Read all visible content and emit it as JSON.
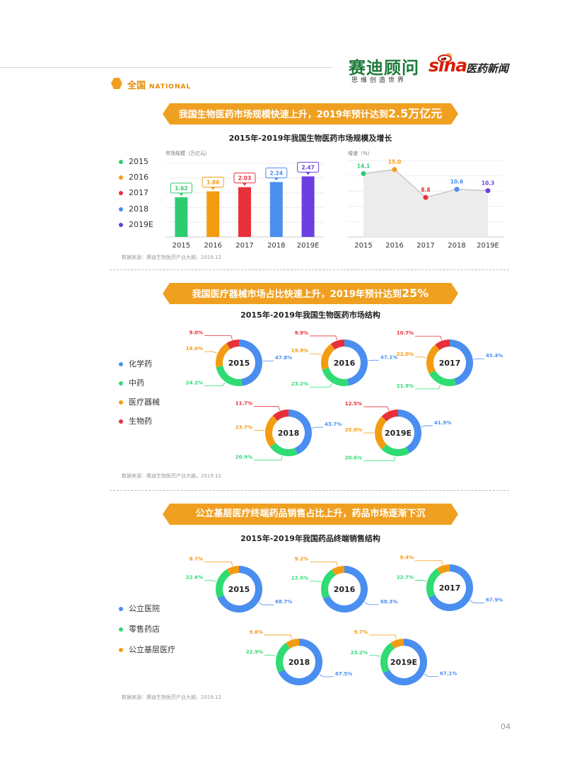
{
  "header": {
    "brand_name": "赛迪顾问",
    "brand_tagline": "思维创造世界",
    "partner_logo_text": "sina",
    "partner_name": "医药新闻",
    "section_cn": "全国",
    "section_en": "NATIONAL"
  },
  "colors": {
    "orange": "#F0A020",
    "c2015": "#2ECC71",
    "c2016": "#F39C12",
    "c2017": "#E8303A",
    "c2018": "#4A8EF0",
    "c2019": "#6B3FE0",
    "blue": "#4A8EF0",
    "green": "#2EDC72",
    "red": "#E8303A"
  },
  "sections": [
    {
      "banner_prefix": "我国生物医药市场规模快速上升，2019年预计达到",
      "banner_highlight": "2.5万亿元",
      "chart_title": "2015年-2019年我国生物医药市场规模及增长",
      "legend": [
        "2015",
        "2016",
        "2017",
        "2018",
        "2019E"
      ],
      "source": "数据来源：赛迪生物医药产业大脑，2019.12"
    },
    {
      "banner_prefix": "我国医疗器械市场占比快速上升，2019年预计达到",
      "banner_highlight": "25%",
      "chart_title": "2015年-2019年我国生物医药市场结构",
      "legend": [
        "化学药",
        "中药",
        "医疗器械",
        "生物药"
      ],
      "source": "数据来源：赛迪生物医药产业大脑，2019.12"
    },
    {
      "banner_prefix": "公立基层医疗终端药品销售占比上升，药品市场逐渐下沉",
      "banner_highlight": "",
      "chart_title": "2015年-2019年我国药品终端销售结构",
      "legend": [
        "公立医院",
        "零售药店",
        "公立基层医疗"
      ],
      "source": "数据来源：赛迪生物医药产业大脑，2019.12"
    }
  ],
  "page_number": "04",
  "chart_data": [
    {
      "type": "bar",
      "ylabel": "市场规模（万亿元）",
      "categories": [
        "2015",
        "2016",
        "2017",
        "2018",
        "2019E"
      ],
      "values": [
        1.62,
        1.86,
        2.03,
        2.24,
        2.47
      ],
      "ylim": [
        0,
        3
      ],
      "grid": true
    },
    {
      "type": "area",
      "ylabel": "增速（%）",
      "categories": [
        "2015",
        "2016",
        "2017",
        "2018",
        "2019E"
      ],
      "values": [
        14.1,
        15.0,
        8.8,
        10.6,
        10.3
      ],
      "ylim": [
        0,
        17
      ],
      "grid": true
    },
    {
      "type": "pie",
      "style": "donut",
      "series_names": [
        "化学药",
        "中药",
        "医疗器械",
        "生物药"
      ],
      "charts": [
        {
          "label": "2015",
          "values": [
            47.8,
            24.2,
            19.0,
            9.0
          ]
        },
        {
          "label": "2016",
          "values": [
            47.1,
            23.2,
            19.9,
            9.9
          ]
        },
        {
          "label": "2017",
          "values": [
            45.4,
            21.9,
            22.0,
            10.7
          ]
        },
        {
          "label": "2018",
          "values": [
            43.7,
            20.9,
            23.7,
            11.7
          ]
        },
        {
          "label": "2019E",
          "values": [
            41.9,
            20.6,
            25.0,
            12.5
          ]
        }
      ]
    },
    {
      "type": "pie",
      "style": "donut",
      "series_names": [
        "公立医院",
        "零售药店",
        "公立基层医疗"
      ],
      "charts": [
        {
          "label": "2015",
          "values": [
            68.7,
            22.6,
            8.7
          ]
        },
        {
          "label": "2016",
          "values": [
            68.3,
            22.5,
            9.2
          ]
        },
        {
          "label": "2017",
          "values": [
            67.9,
            22.7,
            9.4
          ]
        },
        {
          "label": "2018",
          "values": [
            67.5,
            22.9,
            9.6
          ]
        },
        {
          "label": "2019E",
          "values": [
            67.1,
            23.2,
            9.7
          ]
        }
      ]
    }
  ]
}
